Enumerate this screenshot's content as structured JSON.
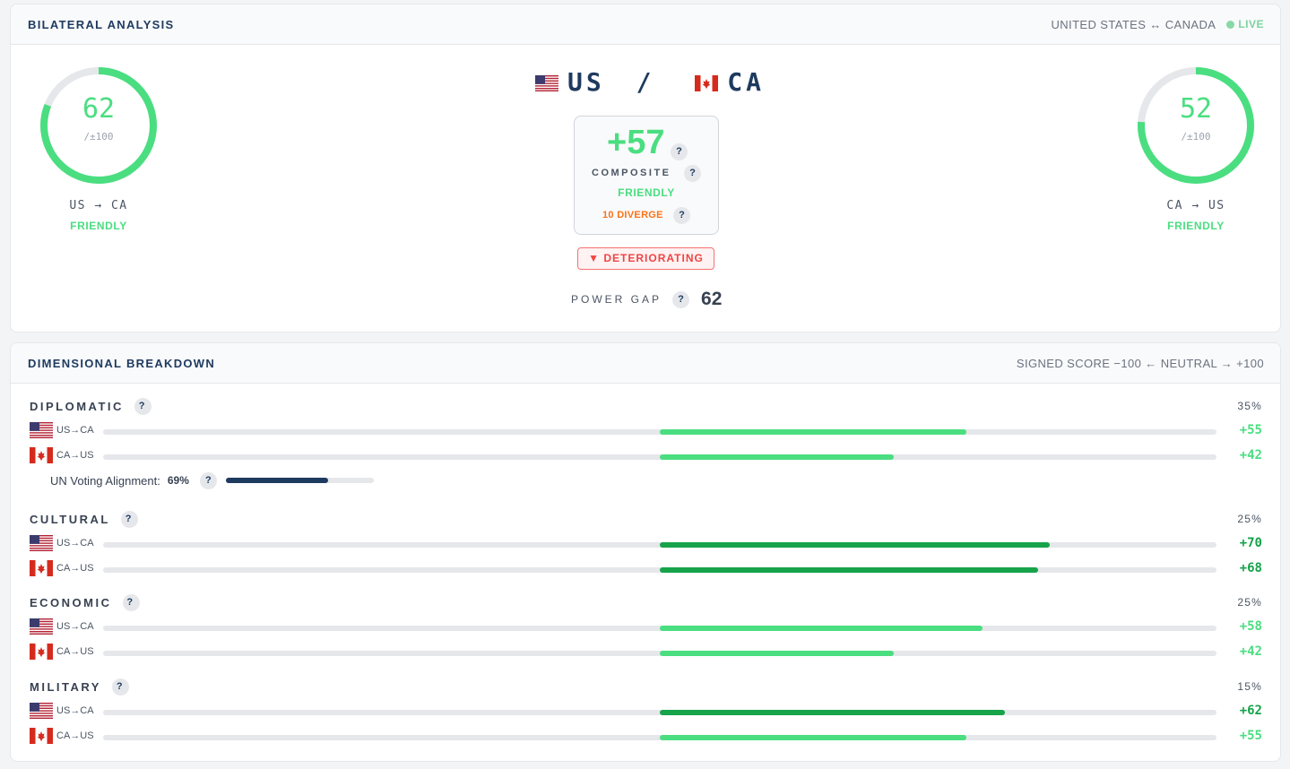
{
  "header": {
    "title": "BILATERAL ANALYSIS",
    "pair_label": "UNITED STATES ↔ CANADA",
    "live_label": "LIVE"
  },
  "pair": {
    "left": "US",
    "sep": "/",
    "right": "CA"
  },
  "left_ring": {
    "score": "62",
    "scale": "/±100",
    "direction": "US → CA",
    "status": "FRIENDLY",
    "value": 62
  },
  "right_ring": {
    "score": "52",
    "scale": "/±100",
    "direction": "CA → US",
    "status": "FRIENDLY",
    "value": 52
  },
  "composite": {
    "score": "+57",
    "label": "COMPOSITE",
    "status": "FRIENDLY",
    "diverge": "10 DIVERGE",
    "help": "?"
  },
  "trend": {
    "label": "▼ DETERIORATING"
  },
  "power_gap": {
    "label": "POWER GAP",
    "value": "62"
  },
  "breakdown": {
    "title": "DIMENSIONAL BREAKDOWN",
    "scale_label": "SIGNED SCORE −100 ← NEUTRAL → +100",
    "un_voting": {
      "label": "UN Voting Alignment:",
      "value": "69%",
      "fraction": 0.69
    },
    "dimensions": [
      {
        "name": "DIPLOMATIC",
        "weight": "35%",
        "rows": [
          {
            "label": "US→CA",
            "flag": "us",
            "value": 55,
            "display": "+55",
            "color": "#4ade80"
          },
          {
            "label": "CA→US",
            "flag": "ca",
            "value": 42,
            "display": "+42",
            "color": "#4ade80"
          }
        ]
      },
      {
        "name": "CULTURAL",
        "weight": "25%",
        "rows": [
          {
            "label": "US→CA",
            "flag": "us",
            "value": 70,
            "display": "+70",
            "color": "#16a34a"
          },
          {
            "label": "CA→US",
            "flag": "ca",
            "value": 68,
            "display": "+68",
            "color": "#16a34a"
          }
        ]
      },
      {
        "name": "ECONOMIC",
        "weight": "25%",
        "rows": [
          {
            "label": "US→CA",
            "flag": "us",
            "value": 58,
            "display": "+58",
            "color": "#4ade80"
          },
          {
            "label": "CA→US",
            "flag": "ca",
            "value": 42,
            "display": "+42",
            "color": "#4ade80"
          }
        ]
      },
      {
        "name": "MILITARY",
        "weight": "15%",
        "rows": [
          {
            "label": "US→CA",
            "flag": "us",
            "value": 62,
            "display": "+62",
            "color": "#16a34a"
          },
          {
            "label": "CA→US",
            "flag": "ca",
            "value": 55,
            "display": "+55",
            "color": "#4ade80"
          }
        ]
      }
    ]
  },
  "colors": {
    "friendly": "#4ade80",
    "strong": "#16a34a",
    "navy": "#1e3a5f",
    "warning": "#ef4444",
    "diverge": "#f97316"
  }
}
